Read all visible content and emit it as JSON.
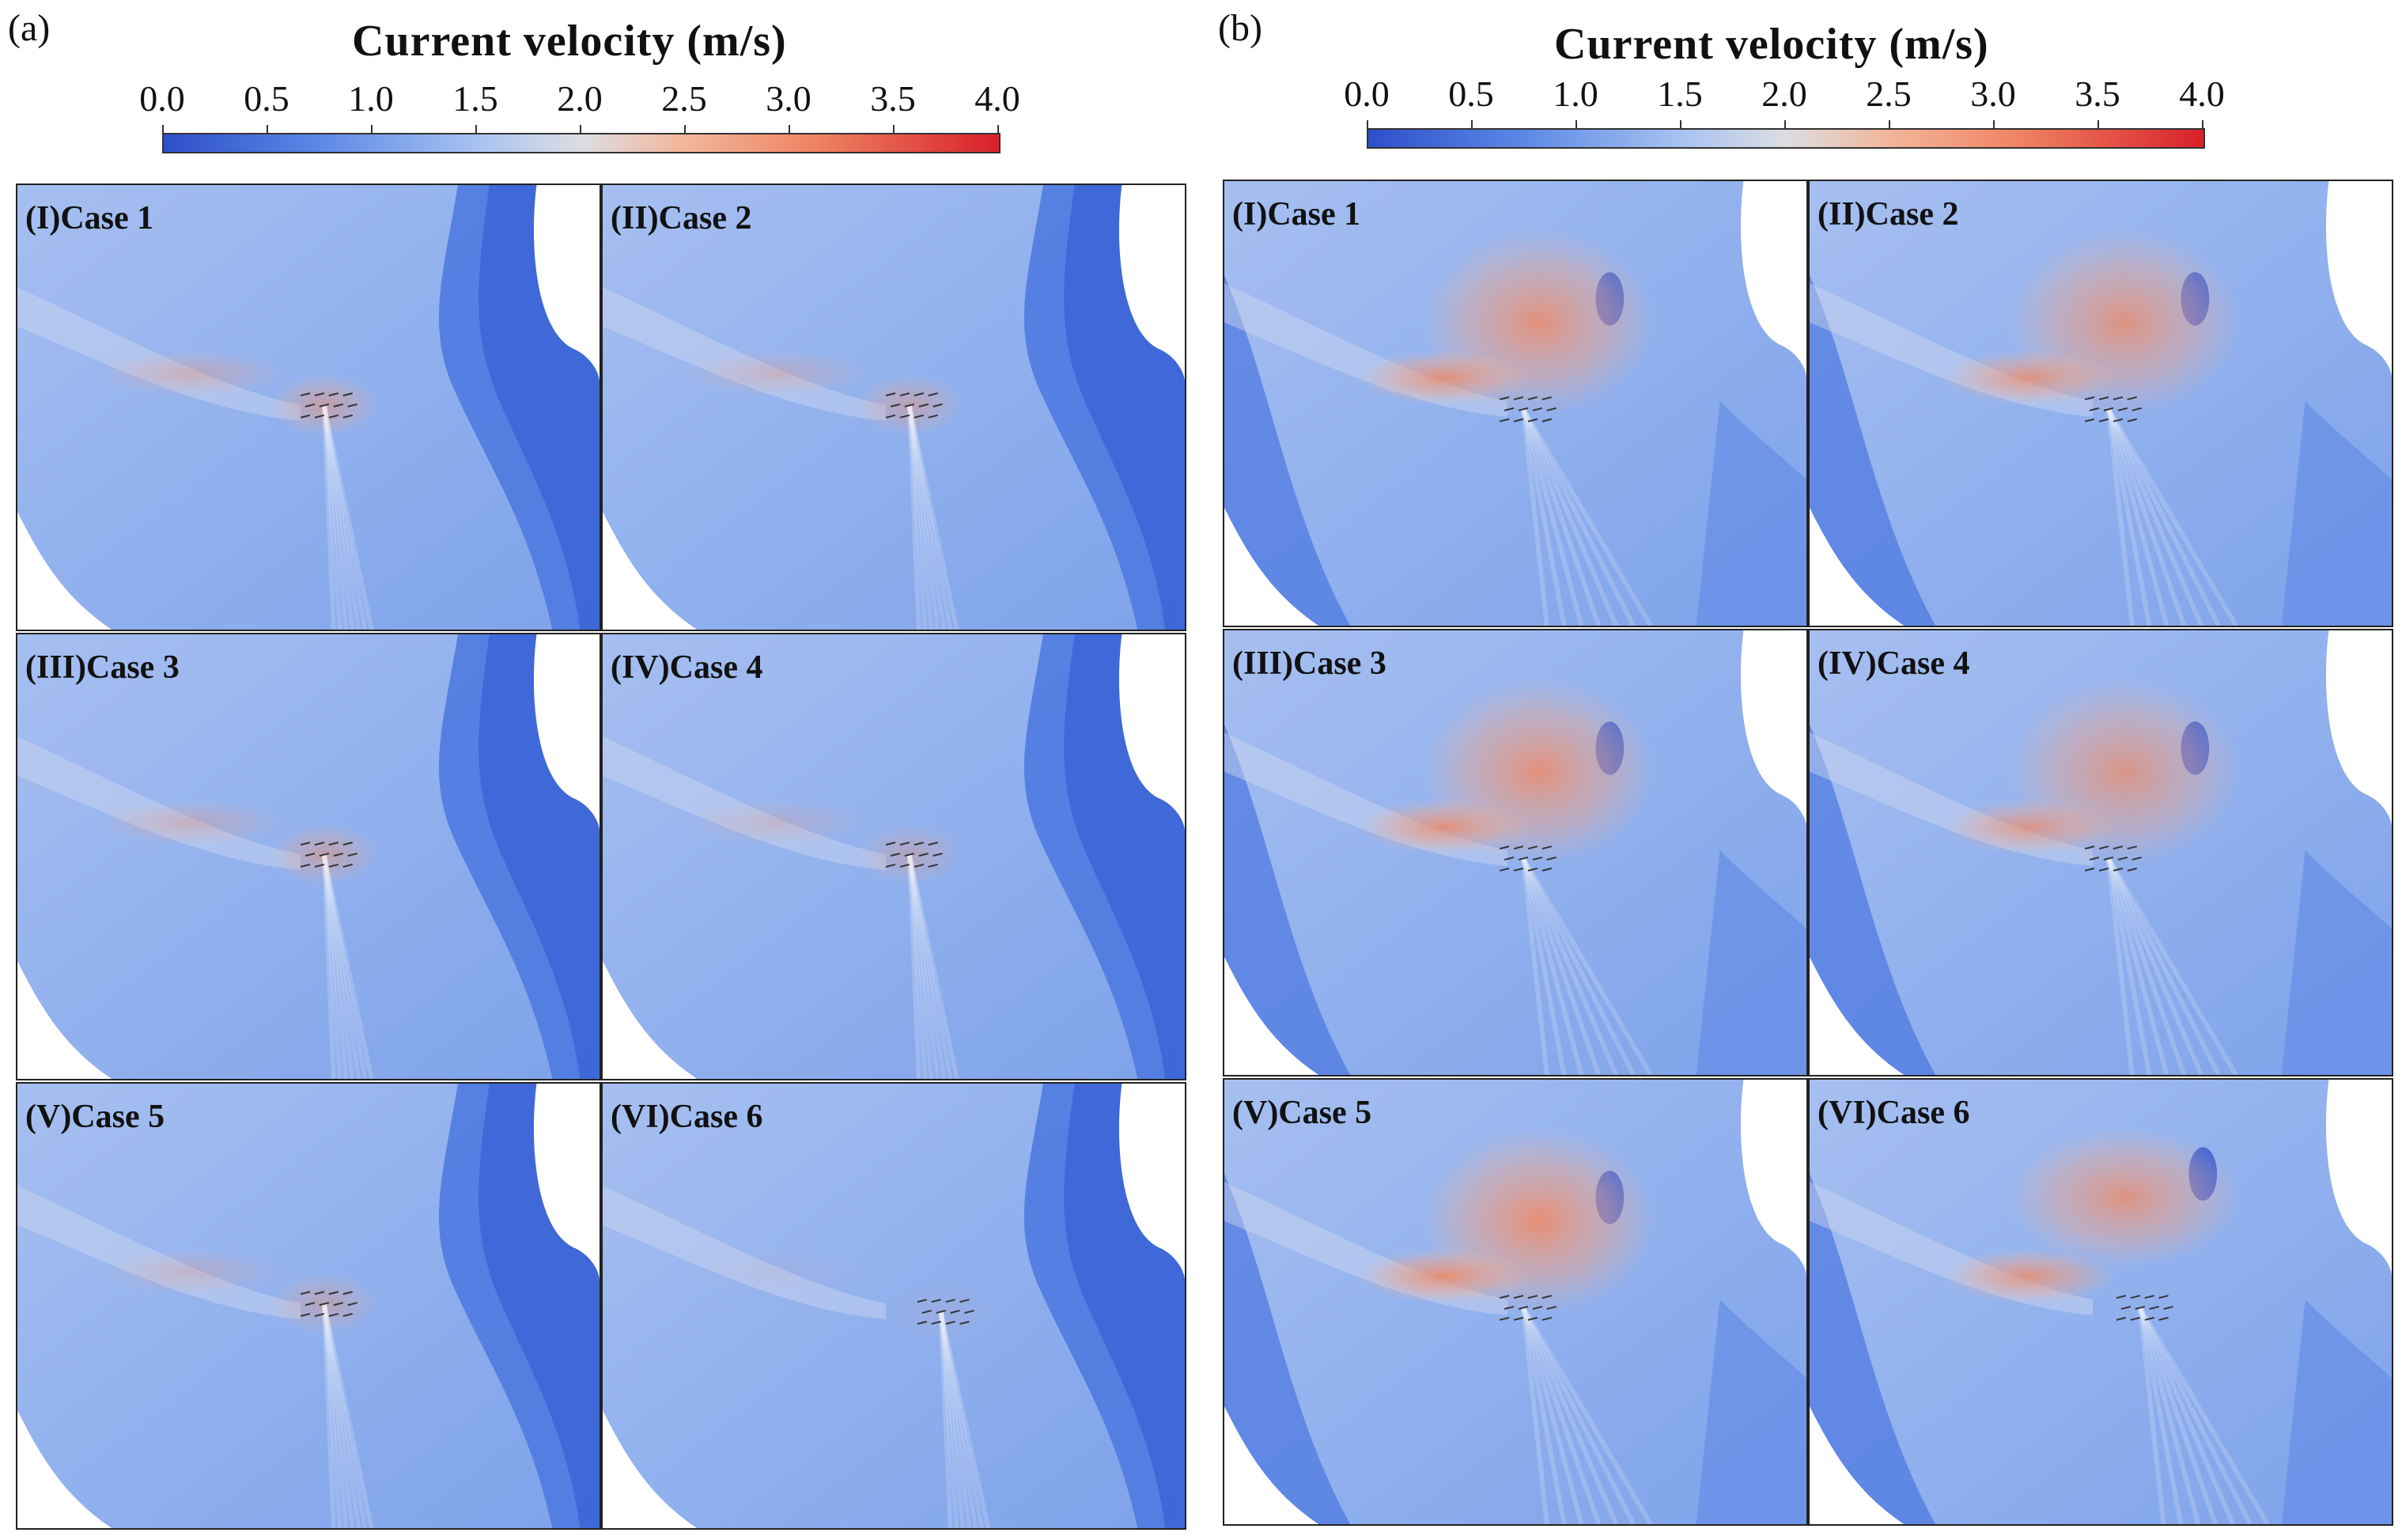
{
  "groups": [
    {
      "label": "(a)",
      "colorbar": {
        "title": "Current velocity (m/s)",
        "ticks": [
          "0.0",
          "0.5",
          "1.0",
          "1.5",
          "2.0",
          "2.5",
          "3.0",
          "3.5",
          "4.0"
        ]
      },
      "variant": "a",
      "panels": [
        "(I)Case 1",
        "(II)Case 2",
        "(III)Case 3",
        "(IV)Case 4",
        "(V)Case 5",
        "(VI)Case 6"
      ]
    },
    {
      "label": "(b)",
      "colorbar": {
        "title": "Current velocity (m/s)",
        "ticks": [
          "0.0",
          "0.5",
          "1.0",
          "1.5",
          "2.0",
          "2.5",
          "3.0",
          "3.5",
          "4.0"
        ]
      },
      "variant": "b",
      "panels": [
        "(I)Case 1",
        "(II)Case 2",
        "(III)Case 3",
        "(IV)Case 4",
        "(V)Case 5",
        "(VI)Case 6"
      ]
    }
  ],
  "colors": {
    "low": "#2d4fc9",
    "mid": "#dcdde2",
    "high": "#d8202a",
    "field": "#8fb0ee"
  }
}
